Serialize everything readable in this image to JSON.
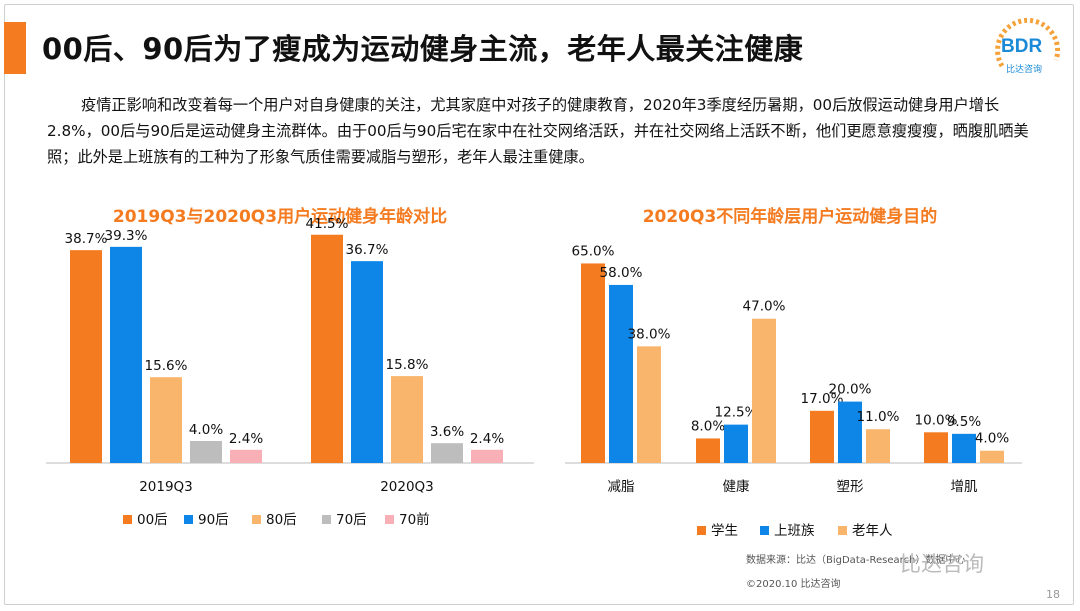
{
  "title": "00后、90后为了瘦成为运动健身主流，老年人最关注健康",
  "intro": "疫情正影响和改变着每一个用户对自身健康的关注，尤其家庭中对孩子的健康教育，2020年3季度经历暑期，00后放假运动健身用户增长2.8%，00后与90后是运动健身主流群体。由于00后与90后宅在家中在社交网络活跃，并在社交网络上活跃不断，他们更愿意瘦瘦瘦，晒腹肌晒美照；此外是上班族有的工种为了形象气质佳需要减脂与塑形，老年人最注重健康。",
  "logo": {
    "text": "BDR",
    "sub": "比达咨询"
  },
  "colors": {
    "orange": "#f47b20",
    "blue": "#0d86e8",
    "lightorange": "#f9b56b",
    "gray": "#bdbdbd",
    "pink": "#f8b0b6"
  },
  "chart_data": [
    {
      "type": "bar",
      "title": "2019Q3与2020Q3用户运动健身年龄对比",
      "categories": [
        "2019Q3",
        "2020Q3"
      ],
      "ylim": [
        0,
        45
      ],
      "series": [
        {
          "name": "00后",
          "values": [
            38.7,
            41.5
          ],
          "labels": [
            "38.7%",
            "41.5%"
          ]
        },
        {
          "name": "90后",
          "values": [
            39.3,
            36.7
          ],
          "labels": [
            "39.3%",
            "36.7%"
          ]
        },
        {
          "name": "80后",
          "values": [
            15.6,
            15.8
          ],
          "labels": [
            "15.6%",
            "15.8%"
          ]
        },
        {
          "name": "70后",
          "values": [
            4.0,
            3.6
          ],
          "labels": [
            "4.0%",
            "3.6%"
          ]
        },
        {
          "name": "70前",
          "values": [
            2.4,
            2.4
          ],
          "labels": [
            "2.4%",
            "2.4%"
          ]
        }
      ]
    },
    {
      "type": "bar",
      "title": "2020Q3不同年龄层用户运动健身目的",
      "categories": [
        "减脂",
        "健康",
        "塑形",
        "增肌"
      ],
      "ylim": [
        0,
        70
      ],
      "series": [
        {
          "name": "学生",
          "values": [
            65.0,
            8.0,
            17.0,
            10.0
          ],
          "labels": [
            "65.0%",
            "8.0%",
            "17.0%",
            "10.0%"
          ]
        },
        {
          "name": "上班族",
          "values": [
            58.0,
            12.5,
            20.0,
            9.5
          ],
          "labels": [
            "58.0%",
            "12.5%",
            "20.0%",
            "9.5%"
          ]
        },
        {
          "name": "老年人",
          "values": [
            38.0,
            47.0,
            11.0,
            4.0
          ],
          "labels": [
            "38.0%",
            "47.0%",
            "11.0%",
            "4.0%"
          ]
        }
      ]
    }
  ],
  "footer": {
    "source": "数据来源：比达（BigData-Research）数据中心",
    "copyright": "©2020.10 比达咨询",
    "watermark": "比达咨询",
    "page": "18"
  }
}
